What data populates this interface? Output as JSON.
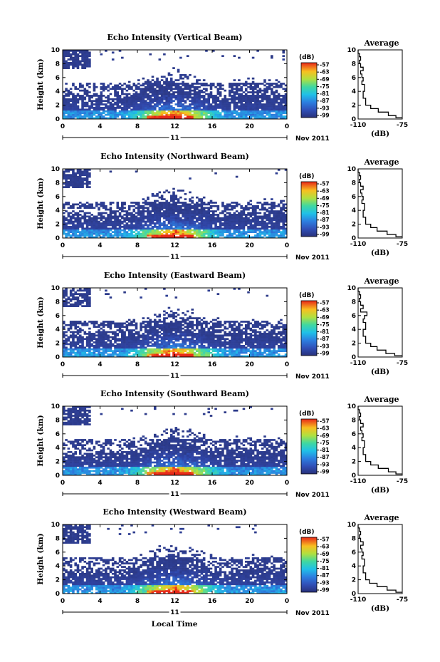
{
  "figure": {
    "x_axis_label": "Local Time",
    "y_axis_label": "Height (km)",
    "date_label": "Nov 2011",
    "day_label": "11",
    "colorbar_unit": "(dB)",
    "colorbar_ticks": [
      "-57",
      "-63",
      "-69",
      "-75",
      "-81",
      "-87",
      "-93",
      "-99"
    ],
    "x_ticks": [
      "0",
      "4",
      "8",
      "12",
      "16",
      "20",
      "0"
    ],
    "y_ticks": [
      "0",
      "2",
      "4",
      "6",
      "8",
      "10"
    ],
    "avg_title": "Average",
    "avg_xlabel": "(dB)",
    "avg_xticks": [
      "-110",
      "-75"
    ],
    "colors": {
      "low": "#2a3a7a",
      "mid": "#2fb0e0",
      "high": "#f0e030",
      "peak": "#e03020"
    }
  },
  "chart_data": [
    {
      "type": "heatmap",
      "title": "Echo Intensity (Vertical Beam)",
      "x_range_hours": [
        0,
        24
      ],
      "y_range_km": [
        0,
        10
      ],
      "color_range_db": [
        -99,
        -57
      ],
      "profile": {
        "type": "line",
        "x_db": [
          -75,
          -80,
          -86,
          -94,
          -100,
          -104,
          -106,
          -105,
          -107,
          -106,
          -107,
          -108,
          -106,
          -108,
          -109,
          -108,
          -109,
          -110
        ],
        "y_km": [
          0.2,
          0.5,
          1.0,
          1.5,
          2.0,
          3.0,
          4.0,
          5.0,
          5.5,
          6.0,
          6.5,
          7.0,
          7.5,
          8.0,
          8.5,
          9.0,
          9.5,
          10.0
        ]
      }
    },
    {
      "type": "heatmap",
      "title": "Echo Intensity (Northward Beam)",
      "x_range_hours": [
        0,
        24
      ],
      "y_range_km": [
        0,
        10
      ],
      "color_range_db": [
        -99,
        -57
      ],
      "profile": {
        "type": "line",
        "x_db": [
          -75,
          -80,
          -87,
          -95,
          -100,
          -104,
          -106,
          -105,
          -107,
          -106,
          -107,
          -108,
          -106,
          -108,
          -109,
          -108,
          -109,
          -110
        ],
        "y_km": [
          0.2,
          0.5,
          1.0,
          1.5,
          2.0,
          3.0,
          4.0,
          5.0,
          5.5,
          6.0,
          6.5,
          7.0,
          7.5,
          8.0,
          8.5,
          9.0,
          9.5,
          10.0
        ]
      }
    },
    {
      "type": "heatmap",
      "title": "Echo Intensity (Eastward Beam)",
      "x_range_hours": [
        0,
        24
      ],
      "y_range_km": [
        0,
        10
      ],
      "color_range_db": [
        -99,
        -57
      ],
      "profile": {
        "type": "line",
        "x_db": [
          -75,
          -81,
          -88,
          -95,
          -100,
          -104,
          -106,
          -104,
          -106,
          -105,
          -103,
          -108,
          -106,
          -108,
          -109,
          -108,
          -109,
          -110
        ],
        "y_km": [
          0.2,
          0.5,
          1.0,
          1.5,
          2.0,
          3.0,
          4.0,
          5.0,
          5.5,
          6.0,
          6.5,
          7.0,
          7.5,
          8.0,
          8.5,
          9.0,
          9.5,
          10.0
        ]
      }
    },
    {
      "type": "heatmap",
      "title": "Echo Intensity (Southward Beam)",
      "x_range_hours": [
        0,
        24
      ],
      "y_range_km": [
        0,
        10
      ],
      "color_range_db": [
        -99,
        -57
      ],
      "profile": {
        "type": "line",
        "x_db": [
          -75,
          -80,
          -86,
          -94,
          -100,
          -104,
          -106,
          -105,
          -107,
          -106,
          -107,
          -108,
          -106,
          -108,
          -109,
          -108,
          -109,
          -110
        ],
        "y_km": [
          0.2,
          0.5,
          1.0,
          1.5,
          2.0,
          3.0,
          4.0,
          5.0,
          5.5,
          6.0,
          6.5,
          7.0,
          7.5,
          8.0,
          8.5,
          9.0,
          9.5,
          10.0
        ]
      }
    },
    {
      "type": "heatmap",
      "title": "Echo Intensity (Westward Beam)",
      "x_range_hours": [
        0,
        24
      ],
      "y_range_km": [
        0,
        10
      ],
      "color_range_db": [
        -99,
        -57
      ],
      "profile": {
        "type": "line",
        "x_db": [
          -75,
          -80,
          -87,
          -95,
          -101,
          -104,
          -106,
          -105,
          -107,
          -106,
          -107,
          -108,
          -106,
          -108,
          -109,
          -108,
          -109,
          -110
        ],
        "y_km": [
          0.2,
          0.5,
          1.0,
          1.5,
          2.0,
          3.0,
          4.0,
          5.0,
          5.5,
          6.0,
          6.5,
          7.0,
          7.5,
          8.0,
          8.5,
          9.0,
          9.5,
          10.0
        ]
      }
    }
  ]
}
